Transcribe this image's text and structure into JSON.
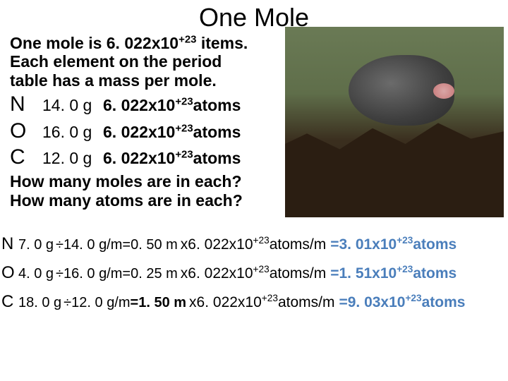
{
  "title": "One Mole",
  "intro_line1": "One mole is 6. 022x10",
  "intro_sup1": "+23",
  "intro_line1b": " items.",
  "intro_line2": "Each element on the period",
  "intro_line3": "table has a mass per mole.",
  "avogadro_base": "6. 022x10",
  "avogadro_sup": "+23",
  "avogadro_suffix": "atoms",
  "elements": [
    {
      "sym": "N",
      "mass": "14. 0 g"
    },
    {
      "sym": "O",
      "mass": "16. 0 g"
    },
    {
      "sym": "C",
      "mass": "12. 0 g"
    }
  ],
  "q1": "How many moles are in each?",
  "q2": "How many atoms are in each?",
  "calcs": [
    {
      "sym": "N",
      "mass": "7. 0 g",
      "div": "÷14. 0 g/m",
      "moles": "=0. 50 m",
      "mult_base": "x6. 022x10",
      "mult_sup": "+23",
      "mult_suf": "atoms/m",
      "res_base": "=3. 01x10",
      "res_sup": "+23",
      "res_suf": "atoms"
    },
    {
      "sym": "O",
      "mass": "4. 0 g",
      "div": "÷16. 0 g/m",
      "moles": "=0. 25 m",
      "mult_base": "x6. 022x10",
      "mult_sup": "+23",
      "mult_suf": "atoms/m",
      "res_base": "=1. 51x10",
      "res_sup": "+23",
      "res_suf": "atoms"
    },
    {
      "sym": "C",
      "mass": "18. 0 g",
      "div": "÷12. 0 g/m",
      "moles": "=1. 50 m",
      "mult_base": "x6. 022x10",
      "mult_sup": "+23",
      "mult_suf": "atoms/m",
      "res_base": "=9. 03x10",
      "res_sup": "+23",
      "res_suf": "atoms"
    }
  ],
  "colors": {
    "result_color": "#4a7ebb"
  }
}
